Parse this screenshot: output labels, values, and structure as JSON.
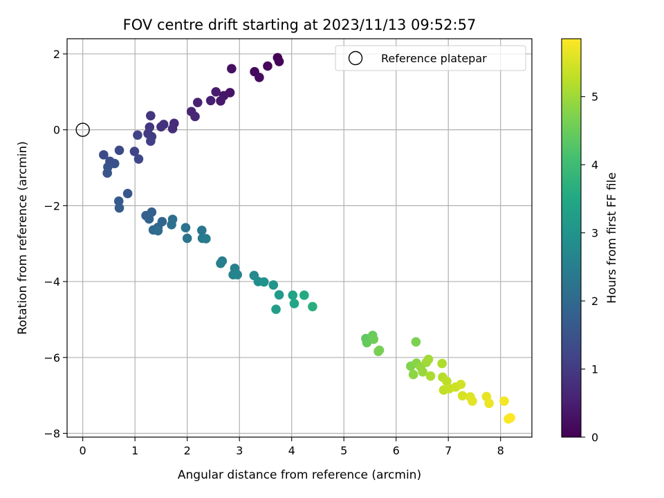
{
  "chart_data": {
    "type": "scatter",
    "title": "FOV centre drift starting at 2023/11/13 09:52:57",
    "xlabel": "Angular distance from reference (arcmin)",
    "ylabel": "Rotation from reference (arcmin)",
    "xlim": [
      -0.3,
      8.6
    ],
    "ylim": [
      -8.1,
      2.4
    ],
    "xticks": [
      0,
      1,
      2,
      3,
      4,
      5,
      6,
      7,
      8
    ],
    "yticks": [
      -8,
      -6,
      -4,
      -2,
      0,
      2
    ],
    "grid": true,
    "legend": {
      "position": "top-right",
      "entries": [
        "Reference platepar"
      ]
    },
    "reference_point": {
      "label": "Reference platepar",
      "x": 0,
      "y": 0
    },
    "colorbar": {
      "label": "Hours from first FF file",
      "colormap": "viridis",
      "range": [
        0,
        5.85
      ],
      "ticks": [
        0,
        1,
        2,
        3,
        4,
        5
      ]
    },
    "points": [
      {
        "x": 3.73,
        "y": 1.9,
        "c": 0.0
      },
      {
        "x": 3.76,
        "y": 1.8,
        "c": 0.05
      },
      {
        "x": 3.54,
        "y": 1.68,
        "c": 0.1
      },
      {
        "x": 3.29,
        "y": 1.53,
        "c": 0.15
      },
      {
        "x": 3.38,
        "y": 1.38,
        "c": 0.2
      },
      {
        "x": 2.85,
        "y": 1.61,
        "c": 0.25
      },
      {
        "x": 2.82,
        "y": 0.98,
        "c": 0.3
      },
      {
        "x": 2.7,
        "y": 0.9,
        "c": 0.35
      },
      {
        "x": 2.64,
        "y": 0.76,
        "c": 0.4
      },
      {
        "x": 2.55,
        "y": 1.0,
        "c": 0.45
      },
      {
        "x": 2.45,
        "y": 0.77,
        "c": 0.5
      },
      {
        "x": 2.2,
        "y": 0.72,
        "c": 0.55
      },
      {
        "x": 2.08,
        "y": 0.48,
        "c": 0.6
      },
      {
        "x": 2.15,
        "y": 0.35,
        "c": 0.65
      },
      {
        "x": 1.75,
        "y": 0.17,
        "c": 0.7
      },
      {
        "x": 1.72,
        "y": 0.03,
        "c": 0.75
      },
      {
        "x": 1.55,
        "y": 0.14,
        "c": 0.8
      },
      {
        "x": 1.5,
        "y": 0.08,
        "c": 0.85
      },
      {
        "x": 1.3,
        "y": 0.37,
        "c": 0.9
      },
      {
        "x": 1.28,
        "y": 0.07,
        "c": 0.95
      },
      {
        "x": 1.25,
        "y": -0.1,
        "c": 1.0
      },
      {
        "x": 1.32,
        "y": -0.18,
        "c": 1.05
      },
      {
        "x": 1.3,
        "y": -0.3,
        "c": 1.1
      },
      {
        "x": 1.05,
        "y": -0.14,
        "c": 1.15
      },
      {
        "x": 0.99,
        "y": -0.57,
        "c": 1.2
      },
      {
        "x": 1.07,
        "y": -0.77,
        "c": 1.25
      },
      {
        "x": 0.7,
        "y": -0.54,
        "c": 1.3
      },
      {
        "x": 0.4,
        "y": -0.66,
        "c": 1.35
      },
      {
        "x": 0.52,
        "y": -0.83,
        "c": 1.4
      },
      {
        "x": 0.61,
        "y": -0.89,
        "c": 1.45
      },
      {
        "x": 0.48,
        "y": -0.98,
        "c": 1.5
      },
      {
        "x": 0.47,
        "y": -1.14,
        "c": 1.55
      },
      {
        "x": 0.86,
        "y": -1.68,
        "c": 1.6
      },
      {
        "x": 0.69,
        "y": -1.88,
        "c": 1.65
      },
      {
        "x": 0.7,
        "y": -2.06,
        "c": 1.7
      },
      {
        "x": 1.32,
        "y": -2.17,
        "c": 1.75
      },
      {
        "x": 1.21,
        "y": -2.26,
        "c": 1.8
      },
      {
        "x": 1.27,
        "y": -2.35,
        "c": 1.85
      },
      {
        "x": 1.52,
        "y": -2.42,
        "c": 1.9
      },
      {
        "x": 1.44,
        "y": -2.57,
        "c": 1.95
      },
      {
        "x": 1.35,
        "y": -2.64,
        "c": 2.0
      },
      {
        "x": 1.44,
        "y": -2.66,
        "c": 2.05
      },
      {
        "x": 1.72,
        "y": -2.36,
        "c": 2.1
      },
      {
        "x": 1.7,
        "y": -2.5,
        "c": 2.15
      },
      {
        "x": 1.97,
        "y": -2.58,
        "c": 2.2
      },
      {
        "x": 2.0,
        "y": -2.86,
        "c": 2.25
      },
      {
        "x": 2.28,
        "y": -2.65,
        "c": 2.3
      },
      {
        "x": 2.29,
        "y": -2.86,
        "c": 2.35
      },
      {
        "x": 2.36,
        "y": -2.87,
        "c": 2.4
      },
      {
        "x": 2.67,
        "y": -3.46,
        "c": 2.45
      },
      {
        "x": 2.64,
        "y": -3.52,
        "c": 2.5
      },
      {
        "x": 2.91,
        "y": -3.65,
        "c": 2.55
      },
      {
        "x": 2.88,
        "y": -3.82,
        "c": 2.6
      },
      {
        "x": 2.96,
        "y": -3.82,
        "c": 2.65
      },
      {
        "x": 3.28,
        "y": -3.84,
        "c": 2.75
      },
      {
        "x": 3.36,
        "y": -4.0,
        "c": 2.85
      },
      {
        "x": 3.47,
        "y": -4.01,
        "c": 2.95
      },
      {
        "x": 3.65,
        "y": -4.09,
        "c": 3.05
      },
      {
        "x": 3.76,
        "y": -4.35,
        "c": 3.15
      },
      {
        "x": 3.7,
        "y": -4.73,
        "c": 3.25
      },
      {
        "x": 4.02,
        "y": -4.36,
        "c": 3.35
      },
      {
        "x": 4.05,
        "y": -4.58,
        "c": 3.45
      },
      {
        "x": 4.24,
        "y": -4.36,
        "c": 3.55
      },
      {
        "x": 4.4,
        "y": -4.66,
        "c": 3.65
      },
      {
        "x": 5.42,
        "y": -5.5,
        "c": 4.4
      },
      {
        "x": 5.44,
        "y": -5.61,
        "c": 4.45
      },
      {
        "x": 5.55,
        "y": -5.42,
        "c": 4.5
      },
      {
        "x": 5.57,
        "y": -5.52,
        "c": 4.55
      },
      {
        "x": 5.66,
        "y": -5.84,
        "c": 4.6
      },
      {
        "x": 5.68,
        "y": -5.81,
        "c": 4.65
      },
      {
        "x": 6.38,
        "y": -5.59,
        "c": 4.7
      },
      {
        "x": 6.28,
        "y": -6.23,
        "c": 4.75
      },
      {
        "x": 6.39,
        "y": -6.15,
        "c": 4.8
      },
      {
        "x": 6.33,
        "y": -6.45,
        "c": 4.85
      },
      {
        "x": 6.47,
        "y": -6.25,
        "c": 4.9
      },
      {
        "x": 6.51,
        "y": -6.38,
        "c": 4.95
      },
      {
        "x": 6.58,
        "y": -6.13,
        "c": 5.0
      },
      {
        "x": 6.62,
        "y": -6.05,
        "c": 5.05
      },
      {
        "x": 6.66,
        "y": -6.49,
        "c": 5.1
      },
      {
        "x": 6.88,
        "y": -6.16,
        "c": 5.15
      },
      {
        "x": 6.89,
        "y": -6.52,
        "c": 5.2
      },
      {
        "x": 6.97,
        "y": -6.63,
        "c": 5.25
      },
      {
        "x": 6.91,
        "y": -6.86,
        "c": 5.3
      },
      {
        "x": 7.02,
        "y": -6.82,
        "c": 5.35
      },
      {
        "x": 7.14,
        "y": -6.78,
        "c": 5.4
      },
      {
        "x": 7.24,
        "y": -6.71,
        "c": 5.45
      },
      {
        "x": 7.27,
        "y": -7.01,
        "c": 5.5
      },
      {
        "x": 7.42,
        "y": -7.04,
        "c": 5.55
      },
      {
        "x": 7.46,
        "y": -7.15,
        "c": 5.6
      },
      {
        "x": 7.73,
        "y": -7.03,
        "c": 5.65
      },
      {
        "x": 7.78,
        "y": -7.21,
        "c": 5.7
      },
      {
        "x": 8.07,
        "y": -7.15,
        "c": 5.75
      },
      {
        "x": 8.15,
        "y": -7.62,
        "c": 5.8
      },
      {
        "x": 8.19,
        "y": -7.59,
        "c": 5.85
      }
    ]
  }
}
